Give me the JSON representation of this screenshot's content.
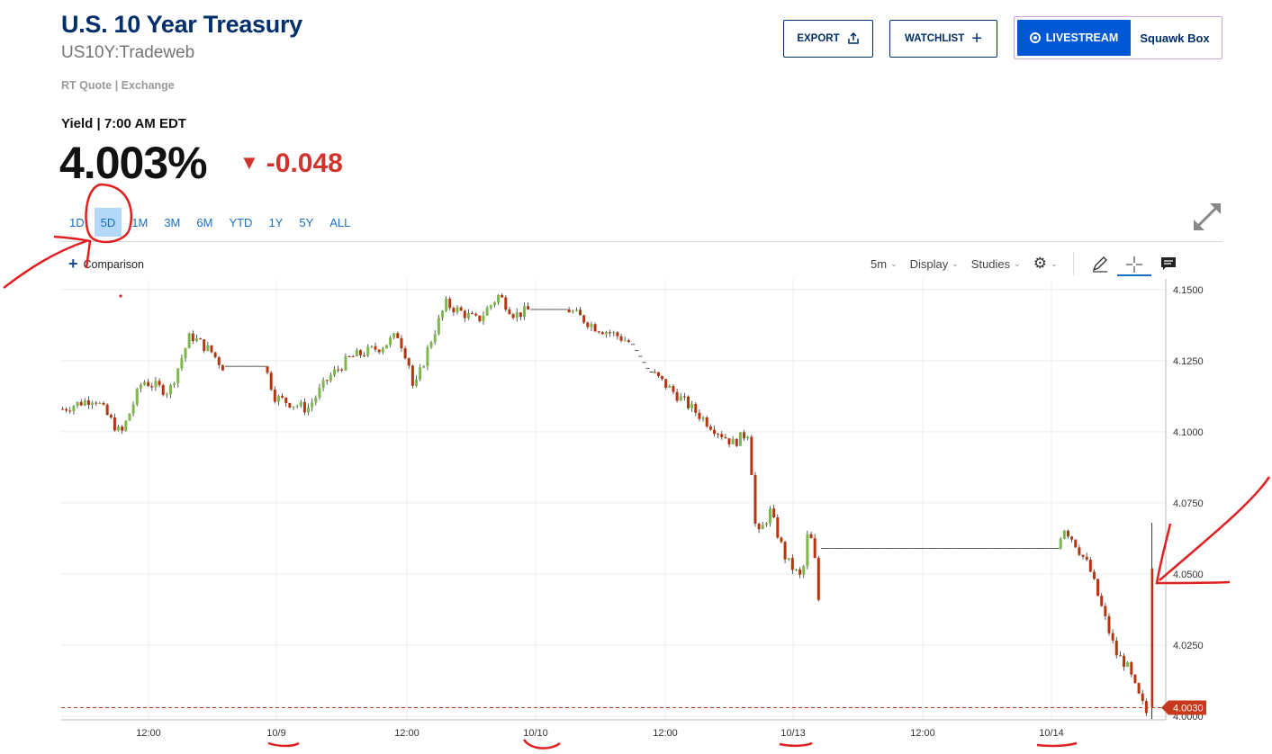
{
  "header": {
    "title": "U.S. 10 Year Treasury",
    "symbol": "US10Y:Tradeweb",
    "quote_source": "RT Quote | Exchange",
    "yield_label": "Yield | 7:00 AM EDT",
    "price": "4.003%",
    "change": "-0.048",
    "change_color": "#d0342c"
  },
  "actions": {
    "export_label": "EXPORT",
    "watchlist_label": "WATCHLIST",
    "livestream_label": "LIVESTREAM",
    "squawk_label": "Squawk Box"
  },
  "ranges": [
    "1D",
    "5D",
    "1M",
    "3M",
    "6M",
    "YTD",
    "1Y",
    "5Y",
    "ALL"
  ],
  "active_range": "5D",
  "toolbar": {
    "comparison_label": "Comparison",
    "interval_label": "5m",
    "display_label": "Display",
    "studies_label": "Studies",
    "icons": [
      "gear-icon",
      "pencil-icon",
      "crosshair-icon",
      "comment-icon"
    ]
  },
  "chart_data": {
    "type": "candlestick",
    "ylim": [
      4.0,
      4.155
    ],
    "y_ticks": [
      "4.1500",
      "4.1250",
      "4.1000",
      "4.0750",
      "4.0500",
      "4.0250",
      "4.0000"
    ],
    "x_labels": [
      "12:00",
      "10/9",
      "12:00",
      "10/10",
      "12:00",
      "10/13",
      "12:00",
      "10/14"
    ],
    "current_value": "4.0030",
    "current_color": "#c8381c",
    "up_color": "#7fb84a",
    "down_color": "#b8340f",
    "path": [
      {
        "t": 0.0,
        "y": 4.108
      },
      {
        "t": 0.03,
        "y": 4.112
      },
      {
        "t": 0.055,
        "y": 4.099
      },
      {
        "t": 0.075,
        "y": 4.118
      },
      {
        "t": 0.1,
        "y": 4.114
      },
      {
        "t": 0.12,
        "y": 4.134
      },
      {
        "t": 0.14,
        "y": 4.128
      },
      {
        "t": 0.15,
        "y": 4.123
      },
      {
        "t": 0.19,
        "y": 4.123
      },
      {
        "t": 0.2,
        "y": 4.112
      },
      {
        "t": 0.23,
        "y": 4.108
      },
      {
        "t": 0.25,
        "y": 4.119
      },
      {
        "t": 0.27,
        "y": 4.126
      },
      {
        "t": 0.3,
        "y": 4.13
      },
      {
        "t": 0.315,
        "y": 4.134
      },
      {
        "t": 0.325,
        "y": 4.125
      },
      {
        "t": 0.33,
        "y": 4.114
      },
      {
        "t": 0.345,
        "y": 4.131
      },
      {
        "t": 0.36,
        "y": 4.145
      },
      {
        "t": 0.39,
        "y": 4.139
      },
      {
        "t": 0.41,
        "y": 4.148
      },
      {
        "t": 0.425,
        "y": 4.141
      },
      {
        "t": 0.44,
        "y": 4.143
      },
      {
        "t": 0.475,
        "y": 4.143
      },
      {
        "t": 0.5,
        "y": 4.137
      },
      {
        "t": 0.52,
        "y": 4.134
      },
      {
        "t": 0.535,
        "y": 4.131
      },
      {
        "t": 0.55,
        "y": 4.122
      },
      {
        "t": 0.58,
        "y": 4.112
      },
      {
        "t": 0.61,
        "y": 4.102
      },
      {
        "t": 0.63,
        "y": 4.096
      },
      {
        "t": 0.645,
        "y": 4.1
      },
      {
        "t": 0.652,
        "y": 4.062
      },
      {
        "t": 0.665,
        "y": 4.072
      },
      {
        "t": 0.68,
        "y": 4.055
      },
      {
        "t": 0.695,
        "y": 4.048
      },
      {
        "t": 0.7,
        "y": 4.063
      },
      {
        "t": 0.706,
        "y": 4.061
      },
      {
        "t": 0.71,
        "y": 4.035
      },
      {
        "t": 0.712,
        "y": 4.059
      },
      {
        "t": 0.935,
        "y": 4.059
      },
      {
        "t": 0.94,
        "y": 4.067
      },
      {
        "t": 0.95,
        "y": 4.062
      },
      {
        "t": 0.965,
        "y": 4.052
      },
      {
        "t": 0.975,
        "y": 4.04
      },
      {
        "t": 0.99,
        "y": 4.022
      },
      {
        "t": 1.0,
        "y": 4.018
      },
      {
        "t": 1.01,
        "y": 4.008
      },
      {
        "t": 1.02,
        "y": 4.0
      },
      {
        "t": 1.025,
        "y": 4.003
      }
    ]
  }
}
